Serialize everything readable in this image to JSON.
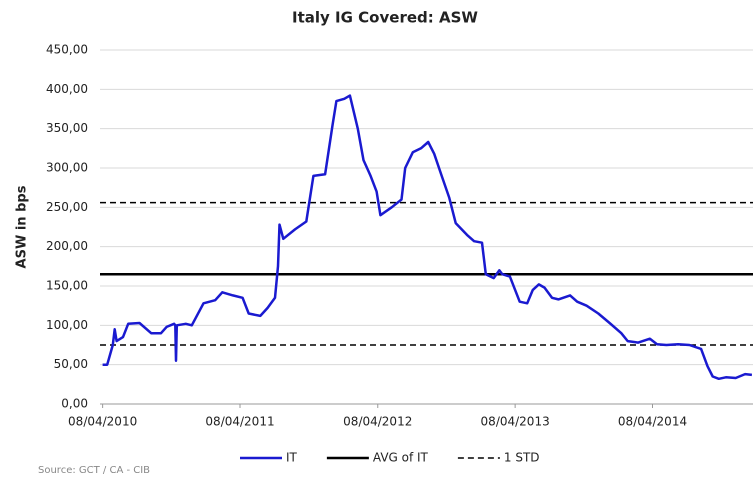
{
  "chart_data": {
    "type": "line",
    "title": "Italy IG Covered: ASW",
    "y_label": "ASW in bps",
    "source": "Source: GCT / CA - CIB",
    "x": [
      "2010-04-08",
      "2010-04-20",
      "2010-05-05",
      "2010-05-10",
      "2010-05-15",
      "2010-06-01",
      "2010-06-15",
      "2010-07-15",
      "2010-08-15",
      "2010-09-10",
      "2010-09-25",
      "2010-10-15",
      "2010-10-18",
      "2010-10-20",
      "2010-10-22",
      "2010-11-15",
      "2010-12-01",
      "2011-01-01",
      "2011-02-01",
      "2011-02-20",
      "2011-03-20",
      "2011-04-15",
      "2011-05-01",
      "2011-06-01",
      "2011-06-20",
      "2011-07-10",
      "2011-07-18",
      "2011-07-22",
      "2011-08-01",
      "2011-09-01",
      "2011-10-01",
      "2011-10-20",
      "2011-11-20",
      "2011-12-10",
      "2011-12-20",
      "2012-01-10",
      "2012-01-25",
      "2012-02-15",
      "2012-03-01",
      "2012-03-20",
      "2012-04-05",
      "2012-04-15",
      "2012-05-15",
      "2012-06-10",
      "2012-06-20",
      "2012-07-10",
      "2012-08-01",
      "2012-08-20",
      "2012-09-05",
      "2012-09-25",
      "2012-10-15",
      "2012-11-01",
      "2012-12-01",
      "2012-12-20",
      "2013-01-10",
      "2013-01-20",
      "2013-02-10",
      "2013-02-25",
      "2013-03-05",
      "2013-03-25",
      "2013-04-20",
      "2013-05-10",
      "2013-05-25",
      "2013-06-10",
      "2013-06-25",
      "2013-07-15",
      "2013-08-01",
      "2013-09-01",
      "2013-09-20",
      "2013-10-15",
      "2013-11-15",
      "2013-12-15",
      "2014-01-15",
      "2014-02-01",
      "2014-03-01",
      "2014-04-01",
      "2014-04-20",
      "2014-05-15",
      "2014-06-15",
      "2014-07-15",
      "2014-08-15",
      "2014-09-01",
      "2014-09-15",
      "2014-10-01",
      "2014-10-20",
      "2014-11-15",
      "2014-12-10",
      "2014-12-28"
    ],
    "series": [
      {
        "name": "IT",
        "color": "#1a1ad0",
        "values": [
          50,
          50,
          75,
          95,
          80,
          85,
          102,
          103,
          90,
          90,
          98,
          102,
          100,
          55,
          100,
          102,
          100,
          128,
          132,
          142,
          138,
          135,
          115,
          112,
          122,
          135,
          175,
          228,
          210,
          222,
          232,
          290,
          292,
          355,
          385,
          388,
          392,
          350,
          310,
          290,
          270,
          240,
          250,
          260,
          300,
          320,
          325,
          333,
          318,
          290,
          262,
          230,
          215,
          207,
          205,
          165,
          160,
          170,
          165,
          162,
          130,
          128,
          145,
          152,
          148,
          135,
          133,
          138,
          130,
          125,
          115,
          103,
          90,
          80,
          78,
          83,
          76,
          75,
          76,
          75,
          70,
          48,
          35,
          32,
          34,
          33,
          38,
          37
        ]
      }
    ],
    "reference_lines": [
      {
        "name": "AVG of IT",
        "color": "#000000",
        "dashed": false,
        "values": [
          165
        ]
      },
      {
        "name": "1 STD",
        "color": "#000000",
        "dashed": true,
        "values": [
          256,
          75
        ]
      }
    ],
    "xlim": [
      "2010-04-01",
      "2014-12-31"
    ],
    "xticks": [
      {
        "value": "2010-04-08",
        "label": "08/04/2010"
      },
      {
        "value": "2011-04-08",
        "label": "08/04/2011"
      },
      {
        "value": "2012-04-08",
        "label": "08/04/2012"
      },
      {
        "value": "2013-04-08",
        "label": "08/04/2013"
      },
      {
        "value": "2014-04-08",
        "label": "08/04/2014"
      }
    ],
    "ylim": [
      0,
      450
    ],
    "yticks": [
      {
        "value": 0,
        "label": "0,00"
      },
      {
        "value": 50,
        "label": "50,00"
      },
      {
        "value": 100,
        "label": "100,00"
      },
      {
        "value": 150,
        "label": "150,00"
      },
      {
        "value": 200,
        "label": "200,00"
      },
      {
        "value": 250,
        "label": "250,00"
      },
      {
        "value": 300,
        "label": "300,00"
      },
      {
        "value": 350,
        "label": "350,00"
      },
      {
        "value": 400,
        "label": "400,00"
      },
      {
        "value": 450,
        "label": "450,00"
      }
    ],
    "grid": true,
    "legend": "bottom"
  }
}
